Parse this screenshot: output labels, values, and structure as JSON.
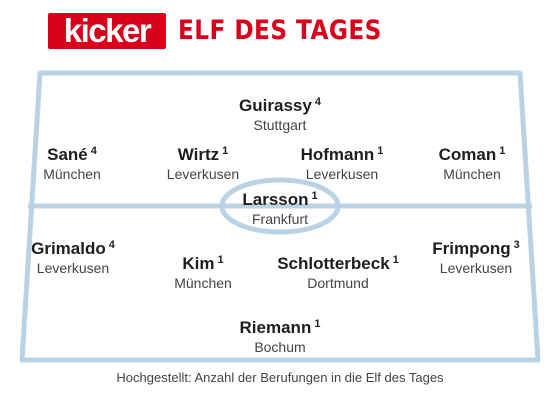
{
  "header": {
    "logo": "kicker",
    "title": "ELF DES TAGES"
  },
  "players": [
    {
      "name": "Guirassy",
      "count": "4",
      "club": "Stuttgart"
    },
    {
      "name": "Sané",
      "count": "4",
      "club": "München"
    },
    {
      "name": "Wirtz",
      "count": "1",
      "club": "Leverkusen"
    },
    {
      "name": "Hofmann",
      "count": "1",
      "club": "Leverkusen"
    },
    {
      "name": "Coman",
      "count": "1",
      "club": "München"
    },
    {
      "name": "Larsson",
      "count": "1",
      "club": "Frankfurt"
    },
    {
      "name": "Grimaldo",
      "count": "4",
      "club": "Leverkusen"
    },
    {
      "name": "Kim",
      "count": "1",
      "club": "München"
    },
    {
      "name": "Schlotterbeck",
      "count": "1",
      "club": "Dortmund"
    },
    {
      "name": "Frimpong",
      "count": "3",
      "club": "Leverkusen"
    },
    {
      "name": "Riemann",
      "count": "1",
      "club": "Bochum"
    }
  ],
  "footer": "Hochgestellt: Anzahl der Berufungen in die Elf des Tages",
  "colors": {
    "brand": "#d9001b",
    "pitch_line": "#b9d2e4"
  }
}
